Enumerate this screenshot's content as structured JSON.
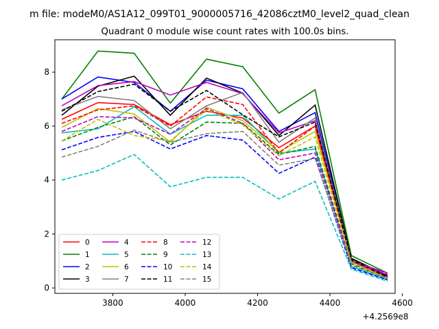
{
  "chart_data": {
    "type": "line",
    "suptitle": "m file: modeM0/AS1A12_099T01_9000005716_42086cztM0_level2_quad_clean",
    "title": "Quadrant 0 module wise count rates with 100.0s bins.",
    "xlabel": "",
    "ylabel": "",
    "x_offset_label": "+4.2569e8",
    "x_offset": 425690000,
    "xlim": [
      3640,
      4580
    ],
    "ylim": [
      -0.2,
      9.2
    ],
    "xticks": [
      3800,
      4000,
      4200,
      4400,
      4600
    ],
    "yticks": [
      0,
      2,
      4,
      6,
      8
    ],
    "grid": false,
    "legend_placement": "lower-left",
    "legend_columns": 4,
    "x": [
      3659,
      3759,
      3859,
      3959,
      4059,
      4159,
      4259,
      4359,
      4459,
      4559
    ],
    "series": [
      {
        "name": "0",
        "color": "#ff0000",
        "dash": "solid",
        "values": [
          6.25,
          6.87,
          6.8,
          6.05,
          6.55,
          6.3,
          5.2,
          6.0,
          1.05,
          0.4
        ]
      },
      {
        "name": "1",
        "color": "#008000",
        "dash": "solid",
        "values": [
          7.0,
          8.78,
          8.7,
          6.85,
          8.48,
          8.2,
          6.48,
          7.35,
          1.2,
          0.55
        ]
      },
      {
        "name": "2",
        "color": "#0000ff",
        "dash": "solid",
        "values": [
          7.0,
          7.82,
          7.62,
          6.55,
          7.7,
          7.38,
          5.8,
          6.5,
          1.1,
          0.45
        ]
      },
      {
        "name": "3",
        "color": "#000000",
        "dash": "solid",
        "values": [
          6.4,
          7.48,
          7.85,
          6.4,
          7.78,
          7.22,
          5.65,
          6.78,
          1.1,
          0.45
        ]
      },
      {
        "name": "4",
        "color": "#bf00bf",
        "dash": "solid",
        "values": [
          6.75,
          7.5,
          7.65,
          7.15,
          7.62,
          7.2,
          5.75,
          6.2,
          1.0,
          0.55
        ]
      },
      {
        "name": "5",
        "color": "#00bfbf",
        "dash": "solid",
        "values": [
          5.75,
          5.9,
          6.72,
          5.7,
          6.4,
          6.4,
          5.0,
          5.15,
          0.8,
          0.3
        ]
      },
      {
        "name": "6",
        "color": "#bfbf00",
        "dash": "solid",
        "values": [
          5.95,
          6.65,
          6.45,
          5.4,
          6.7,
          6.2,
          5.05,
          5.8,
          1.0,
          0.35
        ]
      },
      {
        "name": "7",
        "color": "#808080",
        "dash": "solid",
        "values": [
          6.6,
          7.1,
          6.95,
          5.9,
          6.75,
          7.25,
          5.4,
          6.3,
          1.05,
          0.4
        ]
      },
      {
        "name": "8",
        "color": "#ff0000",
        "dash": "dashed",
        "values": [
          6.1,
          6.6,
          6.75,
          6.0,
          7.08,
          6.8,
          5.0,
          6.0,
          1.0,
          0.4
        ]
      },
      {
        "name": "9",
        "color": "#008000",
        "dash": "dashed",
        "values": [
          5.45,
          5.95,
          6.35,
          5.3,
          6.15,
          6.1,
          4.95,
          5.25,
          0.9,
          0.35
        ]
      },
      {
        "name": "10",
        "color": "#0000ff",
        "dash": "dashed",
        "values": [
          5.12,
          5.58,
          5.8,
          5.15,
          5.65,
          5.48,
          4.25,
          4.85,
          0.75,
          0.3
        ]
      },
      {
        "name": "11",
        "color": "#000000",
        "dash": "dashed",
        "values": [
          6.55,
          7.28,
          7.55,
          6.55,
          7.32,
          6.42,
          5.6,
          6.15,
          1.05,
          0.4
        ]
      },
      {
        "name": "12",
        "color": "#bf00bf",
        "dash": "dashed",
        "values": [
          5.8,
          6.35,
          6.3,
          5.7,
          6.65,
          6.1,
          4.75,
          5.0,
          0.95,
          0.5
        ]
      },
      {
        "name": "13",
        "color": "#00bfbf",
        "dash": "dashed",
        "values": [
          4.0,
          4.35,
          4.95,
          3.75,
          4.1,
          4.1,
          3.3,
          3.95,
          0.7,
          0.25
        ]
      },
      {
        "name": "14",
        "color": "#bfbf00",
        "dash": "dashed",
        "values": [
          5.45,
          6.25,
          5.65,
          5.45,
          6.6,
          6.05,
          4.9,
          5.6,
          0.95,
          0.35
        ]
      },
      {
        "name": "15",
        "color": "#808080",
        "dash": "dashed",
        "values": [
          4.85,
          5.25,
          5.85,
          5.4,
          5.72,
          5.8,
          4.55,
          4.8,
          0.85,
          0.35
        ]
      }
    ]
  }
}
